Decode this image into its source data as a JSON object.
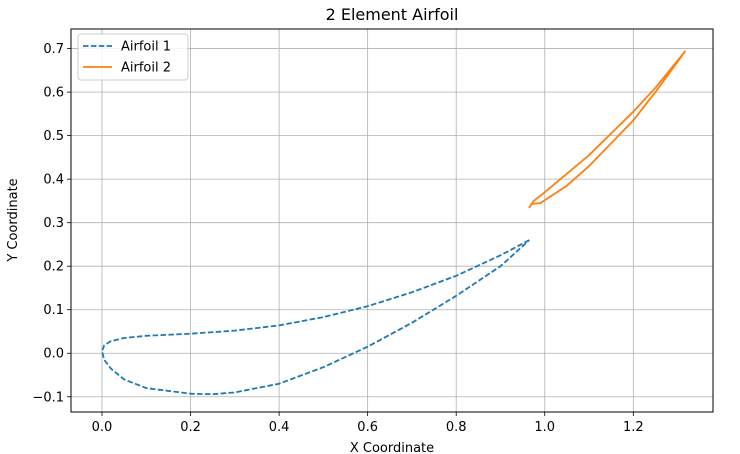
{
  "chart_data": {
    "type": "line",
    "title": "2 Element Airfoil",
    "xlabel": "X Coordinate",
    "ylabel": "Y Coordinate",
    "xlim": [
      -0.07,
      1.38
    ],
    "ylim": [
      -0.135,
      0.745
    ],
    "xticks": [
      0.0,
      0.2,
      0.4,
      0.6,
      0.8,
      1.0,
      1.2
    ],
    "xtick_labels": [
      "0.0",
      "0.2",
      "0.4",
      "0.6",
      "0.8",
      "1.0",
      "1.2"
    ],
    "yticks": [
      -0.1,
      0.0,
      0.1,
      0.2,
      0.3,
      0.4,
      0.5,
      0.6,
      0.7
    ],
    "ytick_labels": [
      "−0.1",
      "0.0",
      "0.1",
      "0.2",
      "0.3",
      "0.4",
      "0.5",
      "0.6",
      "0.7"
    ],
    "grid": true,
    "legend_position": "top-left",
    "series": [
      {
        "name": "Airfoil 1",
        "color": "#1f77b4",
        "linestyle": "dashed",
        "x": [
          0.965,
          0.9,
          0.8,
          0.7,
          0.6,
          0.5,
          0.4,
          0.3,
          0.2,
          0.1,
          0.05,
          0.02,
          0.005,
          0.0,
          0.005,
          0.02,
          0.05,
          0.1,
          0.2,
          0.25,
          0.3,
          0.4,
          0.5,
          0.6,
          0.7,
          0.8,
          0.9,
          0.965
        ],
        "y": [
          0.26,
          0.225,
          0.178,
          0.14,
          0.108,
          0.083,
          0.064,
          0.052,
          0.045,
          0.04,
          0.035,
          0.028,
          0.018,
          0.005,
          -0.015,
          -0.035,
          -0.06,
          -0.08,
          -0.093,
          -0.094,
          -0.09,
          -0.07,
          -0.032,
          0.015,
          0.07,
          0.132,
          0.2,
          0.26
        ]
      },
      {
        "name": "Airfoil 2",
        "color": "#ff7f0e",
        "linestyle": "solid",
        "x": [
          1.318,
          1.25,
          1.2,
          1.1,
          1.0,
          0.975,
          0.965,
          0.97,
          0.99,
          1.05,
          1.1,
          1.2,
          1.25,
          1.318
        ],
        "y": [
          0.695,
          0.61,
          0.555,
          0.455,
          0.37,
          0.35,
          0.335,
          0.343,
          0.345,
          0.385,
          0.43,
          0.535,
          0.6,
          0.695
        ]
      }
    ]
  }
}
